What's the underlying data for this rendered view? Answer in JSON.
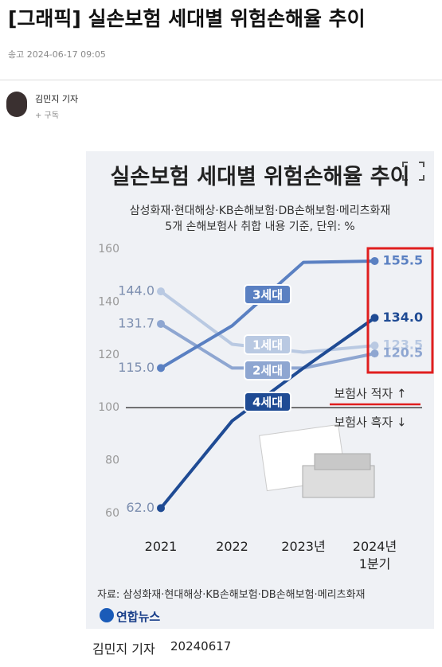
{
  "article": {
    "title": "[그래픽] 실손보험 세대별 위험손해율 추이",
    "meta": "송고 2024-06-17 09:05",
    "author": "김민지 기자",
    "subscribe": "+ 구독",
    "caption_name": "김민지 기자",
    "caption_date": "20240617"
  },
  "chart_data": {
    "type": "line",
    "title": "실손보험 세대별 위험손해율 추이",
    "subtitle": [
      "삼성화재·현대해상·KB손해보험·DB손해보험·메리츠화재",
      "5개 손해보험사 취합 내용 기준, 단위: %"
    ],
    "categories": [
      "2021",
      "2022",
      "2023년",
      "2024년\n1분기"
    ],
    "series": [
      {
        "name": "1세대",
        "color": "#b9c9e2",
        "values": [
          144.0,
          124,
          121,
          123.5
        ],
        "value_labels": [
          "144.0",
          null,
          null,
          "123.5"
        ]
      },
      {
        "name": "2세대",
        "color": "#8ea6d1",
        "values": [
          131.7,
          115,
          115,
          120.5
        ],
        "value_labels": [
          "131.7",
          null,
          null,
          "120.5"
        ]
      },
      {
        "name": "3세대",
        "color": "#5a80c2",
        "values": [
          115.0,
          131,
          155,
          155.5
        ],
        "value_labels": [
          "115.0",
          null,
          null,
          "155.5"
        ]
      },
      {
        "name": "4세대",
        "color": "#1f4b94",
        "values": [
          62.0,
          95,
          115,
          134.0
        ],
        "value_labels": [
          "62.0",
          null,
          null,
          "134.0"
        ]
      }
    ],
    "ylim": [
      60,
      160
    ],
    "yticks": [
      60,
      80,
      100,
      120,
      140,
      160
    ],
    "reference_line": 100,
    "grid": false,
    "annotations": [
      "보험사 적자 ↑",
      "보험사 흑자 ↓"
    ],
    "source": "자료: 삼성화재·현대해상·KB손해보험·DB손해보험·메리츠화재",
    "logo": "연합뉴스"
  }
}
